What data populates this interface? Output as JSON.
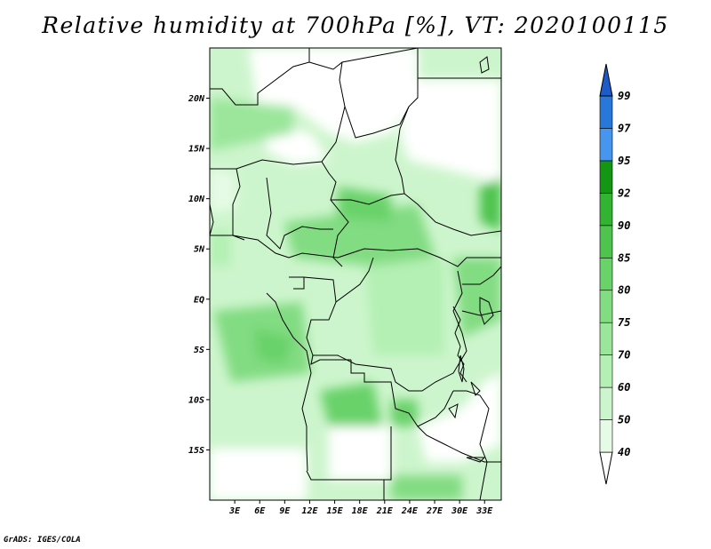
{
  "title": "Relative humidity at 700hPa [%], VT: 2020100115",
  "credit": "GrADS: IGES/COLA",
  "map": {
    "lon_range": [
      0,
      35
    ],
    "lat_range": [
      -20,
      25
    ],
    "x_ticks": [
      "3E",
      "6E",
      "9E",
      "12E",
      "15E",
      "18E",
      "21E",
      "24E",
      "27E",
      "30E",
      "33E"
    ],
    "x_tick_values": [
      3,
      6,
      9,
      12,
      15,
      18,
      21,
      24,
      27,
      30,
      33
    ],
    "y_ticks": [
      "20N",
      "15N",
      "10N",
      "5N",
      "EQ",
      "5S",
      "10S",
      "15S"
    ],
    "y_tick_values": [
      20,
      15,
      10,
      5,
      0,
      -5,
      -10,
      -15
    ]
  },
  "colorbar": {
    "levels": [
      "40",
      "50",
      "60",
      "70",
      "75",
      "80",
      "85",
      "90",
      "92",
      "95",
      "97",
      "99"
    ],
    "colors": [
      "#ffffff",
      "#e6fbe6",
      "#cdf5cd",
      "#b4f0b4",
      "#9be69b",
      "#82dc82",
      "#69d269",
      "#4ec34e",
      "#32b432",
      "#149614",
      "#4696f0",
      "#2878dc",
      "#1e5ac8"
    ]
  }
}
